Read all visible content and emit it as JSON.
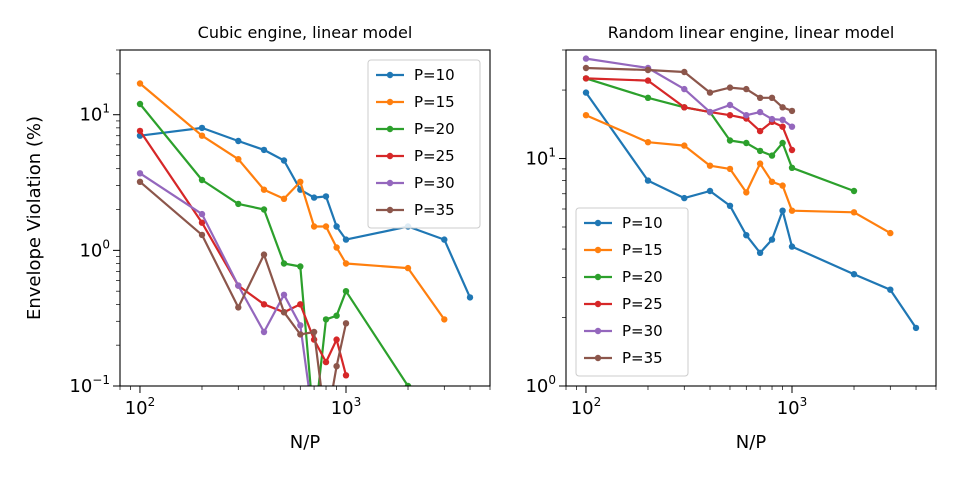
{
  "chart_data": [
    {
      "type": "line",
      "title": "Cubic engine, linear model",
      "xlabel": "N/P",
      "ylabel": "Envelope Violation (%)",
      "xscale": "log",
      "yscale": "log",
      "xlim": [
        80,
        5000
      ],
      "ylim": [
        0.1,
        30
      ],
      "x_ticks": [
        {
          "base": "10",
          "exp": "2"
        },
        {
          "base": "10",
          "exp": "3"
        }
      ],
      "y_ticks": [
        {
          "base": "10",
          "exp": "−1"
        },
        {
          "base": "10",
          "exp": "0"
        },
        {
          "base": "10",
          "exp": "1"
        }
      ],
      "legend_position": "upper right",
      "series": [
        {
          "name": "P=10",
          "color": "#1f77b4",
          "x": [
            100,
            200,
            300,
            400,
            500,
            600,
            700,
            800,
            900,
            1000,
            2000,
            3000,
            4000
          ],
          "y": [
            7.0,
            8.0,
            6.4,
            5.5,
            4.6,
            2.8,
            2.45,
            2.5,
            1.5,
            1.2,
            1.5,
            1.2,
            0.45
          ]
        },
        {
          "name": "P=15",
          "color": "#ff7f0e",
          "x": [
            100,
            200,
            300,
            400,
            500,
            600,
            700,
            800,
            900,
            1000,
            2000,
            3000
          ],
          "y": [
            17.0,
            7.0,
            4.7,
            2.8,
            2.4,
            3.2,
            1.5,
            1.5,
            1.05,
            0.8,
            0.74,
            0.31
          ]
        },
        {
          "name": "P=20",
          "color": "#2ca02c",
          "x": [
            100,
            200,
            300,
            400,
            500,
            600,
            700,
            800,
            900,
            1000,
            2000
          ],
          "y": [
            12.0,
            3.3,
            2.2,
            2.0,
            0.8,
            0.76,
            0.05,
            0.31,
            0.33,
            0.5,
            0.1
          ]
        },
        {
          "name": "P=25",
          "color": "#d62728",
          "x": [
            100,
            200,
            300,
            400,
            500,
            600,
            700,
            800,
            900,
            1000
          ],
          "y": [
            7.6,
            1.6,
            0.55,
            0.4,
            0.35,
            0.4,
            0.22,
            0.15,
            0.22,
            0.12
          ]
        },
        {
          "name": "P=30",
          "color": "#9467bd",
          "x": [
            100,
            200,
            300,
            400,
            500,
            600,
            700
          ],
          "y": [
            3.7,
            1.85,
            0.55,
            0.25,
            0.47,
            0.28,
            0.05
          ]
        },
        {
          "name": "P=35",
          "color": "#8c564b",
          "x": [
            100,
            200,
            300,
            400,
            500,
            600,
            700,
            800,
            900,
            1000
          ],
          "y": [
            3.2,
            1.3,
            0.38,
            0.93,
            0.35,
            0.24,
            0.25,
            0.05,
            0.14,
            0.29
          ]
        }
      ]
    },
    {
      "type": "line",
      "title": "Random linear engine, linear model",
      "xlabel": "N/P",
      "ylabel": "",
      "xscale": "log",
      "yscale": "log",
      "xlim": [
        80,
        5000
      ],
      "ylim": [
        1,
        30
      ],
      "x_ticks": [
        {
          "base": "10",
          "exp": "2"
        },
        {
          "base": "10",
          "exp": "3"
        }
      ],
      "y_ticks": [
        {
          "base": "10",
          "exp": "0"
        },
        {
          "base": "10",
          "exp": "1"
        }
      ],
      "legend_position": "lower left",
      "series": [
        {
          "name": "P=10",
          "color": "#1f77b4",
          "x": [
            100,
            200,
            300,
            400,
            500,
            600,
            700,
            800,
            900,
            1000,
            2000,
            3000,
            4000
          ],
          "y": [
            19.5,
            8.0,
            6.7,
            7.2,
            6.2,
            4.6,
            3.85,
            4.4,
            5.9,
            4.1,
            3.1,
            2.65,
            1.8
          ]
        },
        {
          "name": "P=15",
          "color": "#ff7f0e",
          "x": [
            100,
            200,
            300,
            400,
            500,
            600,
            700,
            800,
            900,
            1000,
            2000,
            3000
          ],
          "y": [
            15.5,
            11.8,
            11.4,
            9.3,
            9.0,
            7.1,
            9.5,
            7.9,
            7.6,
            5.9,
            5.8,
            4.7
          ]
        },
        {
          "name": "P=20",
          "color": "#2ca02c",
          "x": [
            100,
            200,
            300,
            400,
            500,
            600,
            700,
            800,
            900,
            1000,
            2000
          ],
          "y": [
            22.5,
            18.5,
            16.8,
            16.0,
            12.0,
            11.7,
            10.8,
            10.3,
            11.7,
            9.1,
            7.2
          ]
        },
        {
          "name": "P=25",
          "color": "#d62728",
          "x": [
            100,
            200,
            300,
            400,
            500,
            600,
            700,
            800,
            900,
            1000
          ],
          "y": [
            22.5,
            22.0,
            16.8,
            16.0,
            15.5,
            15.0,
            13.2,
            14.5,
            13.8,
            10.9
          ]
        },
        {
          "name": "P=30",
          "color": "#9467bd",
          "x": [
            100,
            200,
            300,
            400,
            500,
            600,
            700,
            800,
            900,
            1000
          ],
          "y": [
            27.5,
            25.0,
            20.2,
            16.0,
            17.2,
            15.5,
            16.0,
            14.9,
            14.8,
            13.8
          ]
        },
        {
          "name": "P=35",
          "color": "#8c564b",
          "x": [
            100,
            200,
            300,
            400,
            500,
            600,
            700,
            800,
            900,
            1000
          ],
          "y": [
            25.0,
            24.5,
            24.0,
            19.5,
            20.5,
            20.2,
            18.5,
            18.5,
            16.8,
            16.2
          ]
        }
      ]
    }
  ]
}
